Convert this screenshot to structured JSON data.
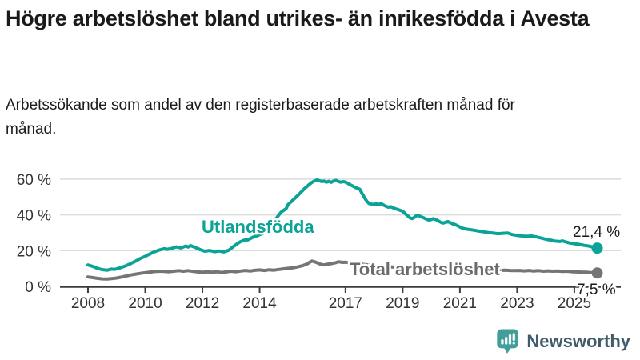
{
  "header": {
    "title": "Högre arbetslöshet bland utrikes- än inrikesfödda i Avesta",
    "subtitle": "Arbetssökande som andel av den registerbaserade arbetskraften månad för månad."
  },
  "footer": {
    "brand": "Newsworthy"
  },
  "colors": {
    "accent_teal": "#0aa396",
    "line_gray": "#757575",
    "label_gray": "#6b6b6b",
    "gridline": "#dcdcdc",
    "axis": "#3d3d3d",
    "tick_text": "#333333",
    "value_text": "#1a1a1a",
    "logo_icon": "#429e98",
    "logo_text": "#3e5c69"
  },
  "chart_data": {
    "type": "line",
    "title": "Högre arbetslöshet bland utrikes- än inrikesfödda i Avesta",
    "subtitle": "Arbetssökande som andel av den registerbaserade arbetskraften månad för månad.",
    "unit": "%",
    "grid": "horizontal",
    "legend_position": "inline-labels",
    "xlim": [
      2007.6,
      2026.0
    ],
    "ylim": [
      0,
      63
    ],
    "x_axis": {
      "ticks": [
        {
          "value": 2008,
          "label": "2008"
        },
        {
          "value": 2010,
          "label": "2010"
        },
        {
          "value": 2012,
          "label": "2012"
        },
        {
          "value": 2014,
          "label": "2014"
        },
        {
          "value": 2017,
          "label": "2017"
        },
        {
          "value": 2019,
          "label": "2019"
        },
        {
          "value": 2021,
          "label": "2021"
        },
        {
          "value": 2023,
          "label": "2023"
        },
        {
          "value": 2025,
          "label": "2025"
        }
      ]
    },
    "y_axis": {
      "ticks": [
        {
          "value": 0,
          "label": "0 %"
        },
        {
          "value": 20,
          "label": "20 %"
        },
        {
          "value": 40,
          "label": "40 %"
        },
        {
          "value": 60,
          "label": "60 %"
        }
      ]
    },
    "series": [
      {
        "name": "Utlandsfödda",
        "color": "#0aa396",
        "end_value": 21.4,
        "end_label": "21,4 %",
        "points": [
          [
            2008.0,
            12.0
          ],
          [
            2008.08,
            11.6
          ],
          [
            2008.17,
            11.2
          ],
          [
            2008.25,
            10.6
          ],
          [
            2008.33,
            10.1
          ],
          [
            2008.42,
            9.7
          ],
          [
            2008.5,
            9.4
          ],
          [
            2008.58,
            9.2
          ],
          [
            2008.67,
            9.1
          ],
          [
            2008.75,
            9.4
          ],
          [
            2008.83,
            9.7
          ],
          [
            2008.92,
            9.5
          ],
          [
            2009.0,
            9.8
          ],
          [
            2009.17,
            10.6
          ],
          [
            2009.33,
            11.6
          ],
          [
            2009.5,
            12.8
          ],
          [
            2009.67,
            14.2
          ],
          [
            2009.83,
            15.6
          ],
          [
            2010.0,
            16.8
          ],
          [
            2010.17,
            18.2
          ],
          [
            2010.33,
            19.4
          ],
          [
            2010.5,
            20.4
          ],
          [
            2010.67,
            21.1
          ],
          [
            2010.75,
            20.7
          ],
          [
            2010.92,
            21.2
          ],
          [
            2011.08,
            22.1
          ],
          [
            2011.25,
            21.5
          ],
          [
            2011.42,
            22.6
          ],
          [
            2011.5,
            22.0
          ],
          [
            2011.58,
            22.8
          ],
          [
            2011.75,
            21.8
          ],
          [
            2011.92,
            20.6
          ],
          [
            2012.08,
            19.7
          ],
          [
            2012.25,
            20.1
          ],
          [
            2012.42,
            19.4
          ],
          [
            2012.58,
            19.8
          ],
          [
            2012.75,
            19.3
          ],
          [
            2012.92,
            20.2
          ],
          [
            2013.0,
            21.2
          ],
          [
            2013.08,
            22.3
          ],
          [
            2013.17,
            23.3
          ],
          [
            2013.25,
            24.2
          ],
          [
            2013.33,
            25.0
          ],
          [
            2013.42,
            25.6
          ],
          [
            2013.5,
            26.1
          ],
          [
            2013.58,
            26.0
          ],
          [
            2013.67,
            26.7
          ],
          [
            2013.75,
            27.4
          ],
          [
            2013.83,
            28.0
          ],
          [
            2013.92,
            28.3
          ],
          [
            2014.0,
            29.0
          ],
          [
            2014.08,
            29.4
          ],
          [
            2014.17,
            30.3
          ],
          [
            2014.25,
            31.4
          ],
          [
            2014.33,
            32.7
          ],
          [
            2014.42,
            34.2
          ],
          [
            2014.5,
            36.0
          ],
          [
            2014.58,
            38.0
          ],
          [
            2014.67,
            39.9
          ],
          [
            2014.75,
            41.5
          ],
          [
            2014.83,
            42.4
          ],
          [
            2014.92,
            43.4
          ],
          [
            2015.0,
            45.9
          ],
          [
            2015.08,
            47.0
          ],
          [
            2015.17,
            48.4
          ],
          [
            2015.25,
            49.6
          ],
          [
            2015.33,
            50.8
          ],
          [
            2015.42,
            52.2
          ],
          [
            2015.5,
            53.6
          ],
          [
            2015.58,
            54.9
          ],
          [
            2015.67,
            56.1
          ],
          [
            2015.75,
            57.2
          ],
          [
            2015.83,
            58.2
          ],
          [
            2015.92,
            59.0
          ],
          [
            2016.0,
            59.5
          ],
          [
            2016.08,
            59.2
          ],
          [
            2016.17,
            58.6
          ],
          [
            2016.25,
            58.9
          ],
          [
            2016.33,
            58.3
          ],
          [
            2016.42,
            58.8
          ],
          [
            2016.5,
            58.2
          ],
          [
            2016.58,
            58.9
          ],
          [
            2016.67,
            59.3
          ],
          [
            2016.75,
            58.7
          ],
          [
            2016.83,
            58.3
          ],
          [
            2016.92,
            58.6
          ],
          [
            2017.0,
            58.4
          ],
          [
            2017.08,
            57.6
          ],
          [
            2017.17,
            56.8
          ],
          [
            2017.25,
            56.2
          ],
          [
            2017.33,
            55.4
          ],
          [
            2017.42,
            54.9
          ],
          [
            2017.5,
            54.3
          ],
          [
            2017.58,
            52.0
          ],
          [
            2017.67,
            49.5
          ],
          [
            2017.75,
            47.5
          ],
          [
            2017.83,
            46.3
          ],
          [
            2017.92,
            46.0
          ],
          [
            2018.0,
            45.9
          ],
          [
            2018.08,
            46.2
          ],
          [
            2018.17,
            45.8
          ],
          [
            2018.25,
            46.3
          ],
          [
            2018.33,
            45.5
          ],
          [
            2018.42,
            44.8
          ],
          [
            2018.5,
            44.3
          ],
          [
            2018.58,
            44.6
          ],
          [
            2018.67,
            43.9
          ],
          [
            2018.75,
            43.4
          ],
          [
            2018.83,
            43.0
          ],
          [
            2018.92,
            42.5
          ],
          [
            2019.0,
            42.0
          ],
          [
            2019.08,
            40.8
          ],
          [
            2019.17,
            39.6
          ],
          [
            2019.25,
            38.4
          ],
          [
            2019.33,
            37.9
          ],
          [
            2019.42,
            38.7
          ],
          [
            2019.5,
            39.8
          ],
          [
            2019.58,
            39.4
          ],
          [
            2019.67,
            38.8
          ],
          [
            2019.75,
            38.2
          ],
          [
            2019.83,
            37.6
          ],
          [
            2019.92,
            37.1
          ],
          [
            2020.0,
            37.4
          ],
          [
            2020.08,
            37.9
          ],
          [
            2020.17,
            37.3
          ],
          [
            2020.25,
            36.6
          ],
          [
            2020.33,
            35.9
          ],
          [
            2020.42,
            35.4
          ],
          [
            2020.5,
            35.9
          ],
          [
            2020.58,
            36.3
          ],
          [
            2020.67,
            35.6
          ],
          [
            2020.75,
            35.0
          ],
          [
            2020.83,
            34.6
          ],
          [
            2020.92,
            33.9
          ],
          [
            2021.0,
            33.2
          ],
          [
            2021.08,
            32.6
          ],
          [
            2021.17,
            32.2
          ],
          [
            2021.25,
            32.0
          ],
          [
            2021.33,
            31.8
          ],
          [
            2021.5,
            31.4
          ],
          [
            2021.67,
            30.9
          ],
          [
            2021.83,
            30.5
          ],
          [
            2022.0,
            30.1
          ],
          [
            2022.17,
            29.8
          ],
          [
            2022.33,
            29.5
          ],
          [
            2022.5,
            29.7
          ],
          [
            2022.67,
            29.9
          ],
          [
            2022.83,
            29.0
          ],
          [
            2023.0,
            28.5
          ],
          [
            2023.17,
            28.2
          ],
          [
            2023.33,
            28.0
          ],
          [
            2023.5,
            28.2
          ],
          [
            2023.67,
            27.7
          ],
          [
            2023.83,
            27.1
          ],
          [
            2024.0,
            26.4
          ],
          [
            2024.17,
            25.9
          ],
          [
            2024.33,
            25.3
          ],
          [
            2024.5,
            25.1
          ],
          [
            2024.58,
            25.5
          ],
          [
            2024.67,
            25.0
          ],
          [
            2024.83,
            24.3
          ],
          [
            2025.0,
            23.9
          ],
          [
            2025.17,
            23.5
          ],
          [
            2025.33,
            23.0
          ],
          [
            2025.5,
            22.6
          ],
          [
            2025.67,
            21.9
          ],
          [
            2025.8,
            21.4
          ]
        ]
      },
      {
        "name": "Total arbetslöshet",
        "color": "#757575",
        "end_value": 7.5,
        "end_label": "7,5 %",
        "points": [
          [
            2008.0,
            5.3
          ],
          [
            2008.17,
            4.9
          ],
          [
            2008.33,
            4.5
          ],
          [
            2008.5,
            4.2
          ],
          [
            2008.67,
            4.1
          ],
          [
            2008.83,
            4.4
          ],
          [
            2009.0,
            4.7
          ],
          [
            2009.17,
            5.2
          ],
          [
            2009.33,
            5.8
          ],
          [
            2009.5,
            6.4
          ],
          [
            2009.67,
            6.9
          ],
          [
            2009.83,
            7.3
          ],
          [
            2010.0,
            7.7
          ],
          [
            2010.17,
            8.0
          ],
          [
            2010.33,
            8.3
          ],
          [
            2010.5,
            8.5
          ],
          [
            2010.67,
            8.4
          ],
          [
            2010.83,
            8.2
          ],
          [
            2011.0,
            8.5
          ],
          [
            2011.17,
            8.8
          ],
          [
            2011.33,
            8.5
          ],
          [
            2011.5,
            8.8
          ],
          [
            2011.67,
            8.4
          ],
          [
            2011.83,
            8.1
          ],
          [
            2012.0,
            7.9
          ],
          [
            2012.17,
            8.2
          ],
          [
            2012.33,
            7.9
          ],
          [
            2012.5,
            8.2
          ],
          [
            2012.67,
            7.8
          ],
          [
            2012.83,
            8.1
          ],
          [
            2013.0,
            8.5
          ],
          [
            2013.17,
            8.2
          ],
          [
            2013.33,
            8.6
          ],
          [
            2013.5,
            8.9
          ],
          [
            2013.67,
            8.6
          ],
          [
            2013.83,
            9.0
          ],
          [
            2014.0,
            9.2
          ],
          [
            2014.17,
            8.9
          ],
          [
            2014.33,
            9.3
          ],
          [
            2014.5,
            9.1
          ],
          [
            2014.67,
            9.5
          ],
          [
            2014.83,
            9.8
          ],
          [
            2015.0,
            10.1
          ],
          [
            2015.17,
            10.4
          ],
          [
            2015.33,
            10.9
          ],
          [
            2015.5,
            11.6
          ],
          [
            2015.67,
            12.6
          ],
          [
            2015.75,
            13.5
          ],
          [
            2015.83,
            14.2
          ],
          [
            2015.92,
            13.8
          ],
          [
            2016.0,
            13.3
          ],
          [
            2016.08,
            12.7
          ],
          [
            2016.17,
            12.2
          ],
          [
            2016.25,
            12.0
          ],
          [
            2016.33,
            12.3
          ],
          [
            2016.5,
            12.7
          ],
          [
            2016.67,
            13.3
          ],
          [
            2016.75,
            13.8
          ],
          [
            2016.83,
            13.6
          ],
          [
            2016.92,
            13.4
          ],
          [
            2017.0,
            13.5
          ],
          [
            2017.17,
            13.2
          ],
          [
            2017.33,
            12.9
          ],
          [
            2017.5,
            12.6
          ],
          [
            2017.75,
            12.1
          ],
          [
            2018.0,
            11.7
          ],
          [
            2018.25,
            11.3
          ],
          [
            2018.5,
            11.0
          ],
          [
            2018.75,
            10.7
          ],
          [
            2019.0,
            10.4
          ],
          [
            2019.25,
            10.1
          ],
          [
            2019.5,
            9.9
          ],
          [
            2019.75,
            9.8
          ],
          [
            2020.0,
            10.0
          ],
          [
            2020.25,
            10.3
          ],
          [
            2020.5,
            10.1
          ],
          [
            2020.75,
            9.8
          ],
          [
            2021.0,
            9.6
          ],
          [
            2021.25,
            9.4
          ],
          [
            2021.5,
            9.2
          ],
          [
            2021.75,
            9.1
          ],
          [
            2022.0,
            9.0
          ],
          [
            2022.25,
            8.9
          ],
          [
            2022.42,
            9.0
          ],
          [
            2022.58,
            9.1
          ],
          [
            2022.75,
            8.9
          ],
          [
            2022.92,
            8.8
          ],
          [
            2023.08,
            8.9
          ],
          [
            2023.25,
            8.7
          ],
          [
            2023.42,
            8.9
          ],
          [
            2023.58,
            8.6
          ],
          [
            2023.75,
            8.8
          ],
          [
            2023.92,
            8.5
          ],
          [
            2024.08,
            8.7
          ],
          [
            2024.25,
            8.5
          ],
          [
            2024.42,
            8.6
          ],
          [
            2024.58,
            8.4
          ],
          [
            2024.75,
            8.5
          ],
          [
            2024.92,
            8.2
          ],
          [
            2025.08,
            8.1
          ],
          [
            2025.25,
            8.0
          ],
          [
            2025.42,
            7.9
          ],
          [
            2025.58,
            7.7
          ],
          [
            2025.8,
            7.5
          ]
        ]
      }
    ]
  }
}
